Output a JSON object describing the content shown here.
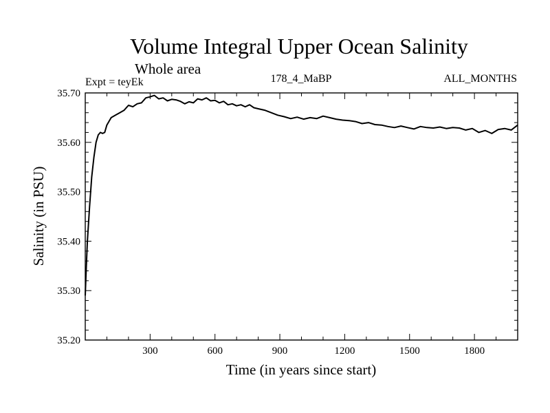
{
  "chart_data": {
    "type": "line",
    "title": "Volume Integral Upper Ocean Salinity",
    "subtitle_left": "Whole area",
    "expt_label": "Expt = teyEk",
    "subtitle_center": "178_4_MaBP",
    "subtitle_right": "ALL_MONTHS",
    "xlabel": "Time (in years since start)",
    "ylabel": "Salinity (in PSU)",
    "xlim": [
      0,
      2000
    ],
    "ylim": [
      35.2,
      35.7
    ],
    "x_ticks": [
      300,
      600,
      900,
      1200,
      1500,
      1800
    ],
    "x_tick_labels": [
      "300",
      "600",
      "900",
      "1200",
      "1500",
      "1800"
    ],
    "y_ticks": [
      35.2,
      35.3,
      35.4,
      35.5,
      35.6,
      35.7
    ],
    "y_tick_labels": [
      "35.20",
      "35.30",
      "35.40",
      "35.50",
      "35.60",
      "35.70"
    ],
    "grid": false,
    "series": [
      {
        "name": "Salinity",
        "x": [
          0,
          5,
          10,
          20,
          30,
          40,
          50,
          60,
          70,
          80,
          90,
          100,
          120,
          140,
          160,
          180,
          200,
          220,
          240,
          260,
          280,
          300,
          320,
          340,
          360,
          380,
          400,
          420,
          440,
          460,
          480,
          500,
          520,
          540,
          560,
          580,
          600,
          620,
          640,
          660,
          680,
          700,
          720,
          740,
          760,
          780,
          800,
          830,
          860,
          890,
          920,
          950,
          980,
          1010,
          1040,
          1070,
          1100,
          1130,
          1160,
          1190,
          1220,
          1250,
          1280,
          1310,
          1340,
          1370,
          1400,
          1430,
          1460,
          1490,
          1520,
          1550,
          1580,
          1610,
          1640,
          1670,
          1700,
          1730,
          1760,
          1790,
          1820,
          1850,
          1880,
          1910,
          1940,
          1970,
          2000
        ],
        "values": [
          35.29,
          35.35,
          35.4,
          35.47,
          35.53,
          35.57,
          35.6,
          35.615,
          35.62,
          35.618,
          35.62,
          35.635,
          35.65,
          35.655,
          35.66,
          35.665,
          35.675,
          35.672,
          35.678,
          35.68,
          35.69,
          35.692,
          35.695,
          35.688,
          35.69,
          35.684,
          35.687,
          35.686,
          35.683,
          35.678,
          35.682,
          35.68,
          35.688,
          35.686,
          35.69,
          35.684,
          35.685,
          35.68,
          35.683,
          35.676,
          35.678,
          35.674,
          35.676,
          35.672,
          35.676,
          35.67,
          35.668,
          35.665,
          35.66,
          35.655,
          35.652,
          35.648,
          35.651,
          35.647,
          35.65,
          35.648,
          35.653,
          35.65,
          35.647,
          35.645,
          35.644,
          35.642,
          35.638,
          35.64,
          35.636,
          35.635,
          35.632,
          35.63,
          35.633,
          35.63,
          35.627,
          35.632,
          35.63,
          35.629,
          35.631,
          35.628,
          35.63,
          35.629,
          35.625,
          35.628,
          35.62,
          35.624,
          35.618,
          35.626,
          35.628,
          35.625,
          35.635
        ]
      }
    ]
  }
}
